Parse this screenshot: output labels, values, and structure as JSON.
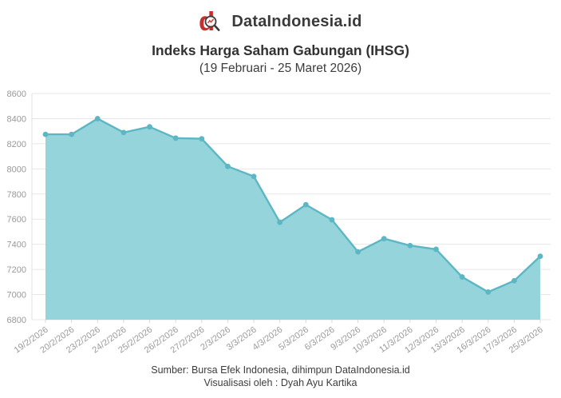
{
  "brand": {
    "name": "DataIndonesia.id",
    "logo_color": "#c5302c"
  },
  "title": "Indeks Harga Saham Gabungan (IHSG)",
  "subtitle": "(19 Februari - 25 Maret 2026)",
  "footer": {
    "source": "Sumber: Bursa Efek Indonesia, dihimpun DataIndonesia.id",
    "visualization": "Visualisasi oleh : Dyah Ayu Kartika"
  },
  "chart_data": {
    "type": "area",
    "title": "Indeks Harga Saham Gabungan (IHSG)",
    "subtitle": "(19 Februari - 25 Maret 2026)",
    "xlabel": "",
    "ylabel": "",
    "categories": [
      "19/2/2026",
      "20/2/2026",
      "23/2/2026",
      "24/2/2026",
      "25/2/2026",
      "26/2/2026",
      "27/2/2026",
      "2/3/2026",
      "3/3/2026",
      "4/3/2026",
      "5/3/2026",
      "6/3/2026",
      "9/3/2026",
      "10/3/2026",
      "11/3/2026",
      "12/3/2026",
      "13/3/2026",
      "16/3/2026",
      "17/3/2026",
      "25/3/2026"
    ],
    "values": [
      8275,
      8275,
      8400,
      8290,
      8335,
      8245,
      8240,
      8020,
      7940,
      7575,
      7715,
      7595,
      7340,
      7445,
      7390,
      7360,
      7140,
      7020,
      7110,
      7305
    ],
    "ylim": [
      6800,
      8600
    ],
    "ytick_step": 200,
    "yticks": [
      6800,
      7000,
      7200,
      7400,
      7600,
      7800,
      8000,
      8200,
      8400,
      8600
    ],
    "grid": true,
    "legend": false,
    "marker": "circle",
    "colors": {
      "fill": "#96d4db",
      "line": "#5cb6c4",
      "marker": "#5cb6c4",
      "grid": "#e7e7e7",
      "axis": "#e0e0e0",
      "axis_label": "#999999"
    }
  }
}
